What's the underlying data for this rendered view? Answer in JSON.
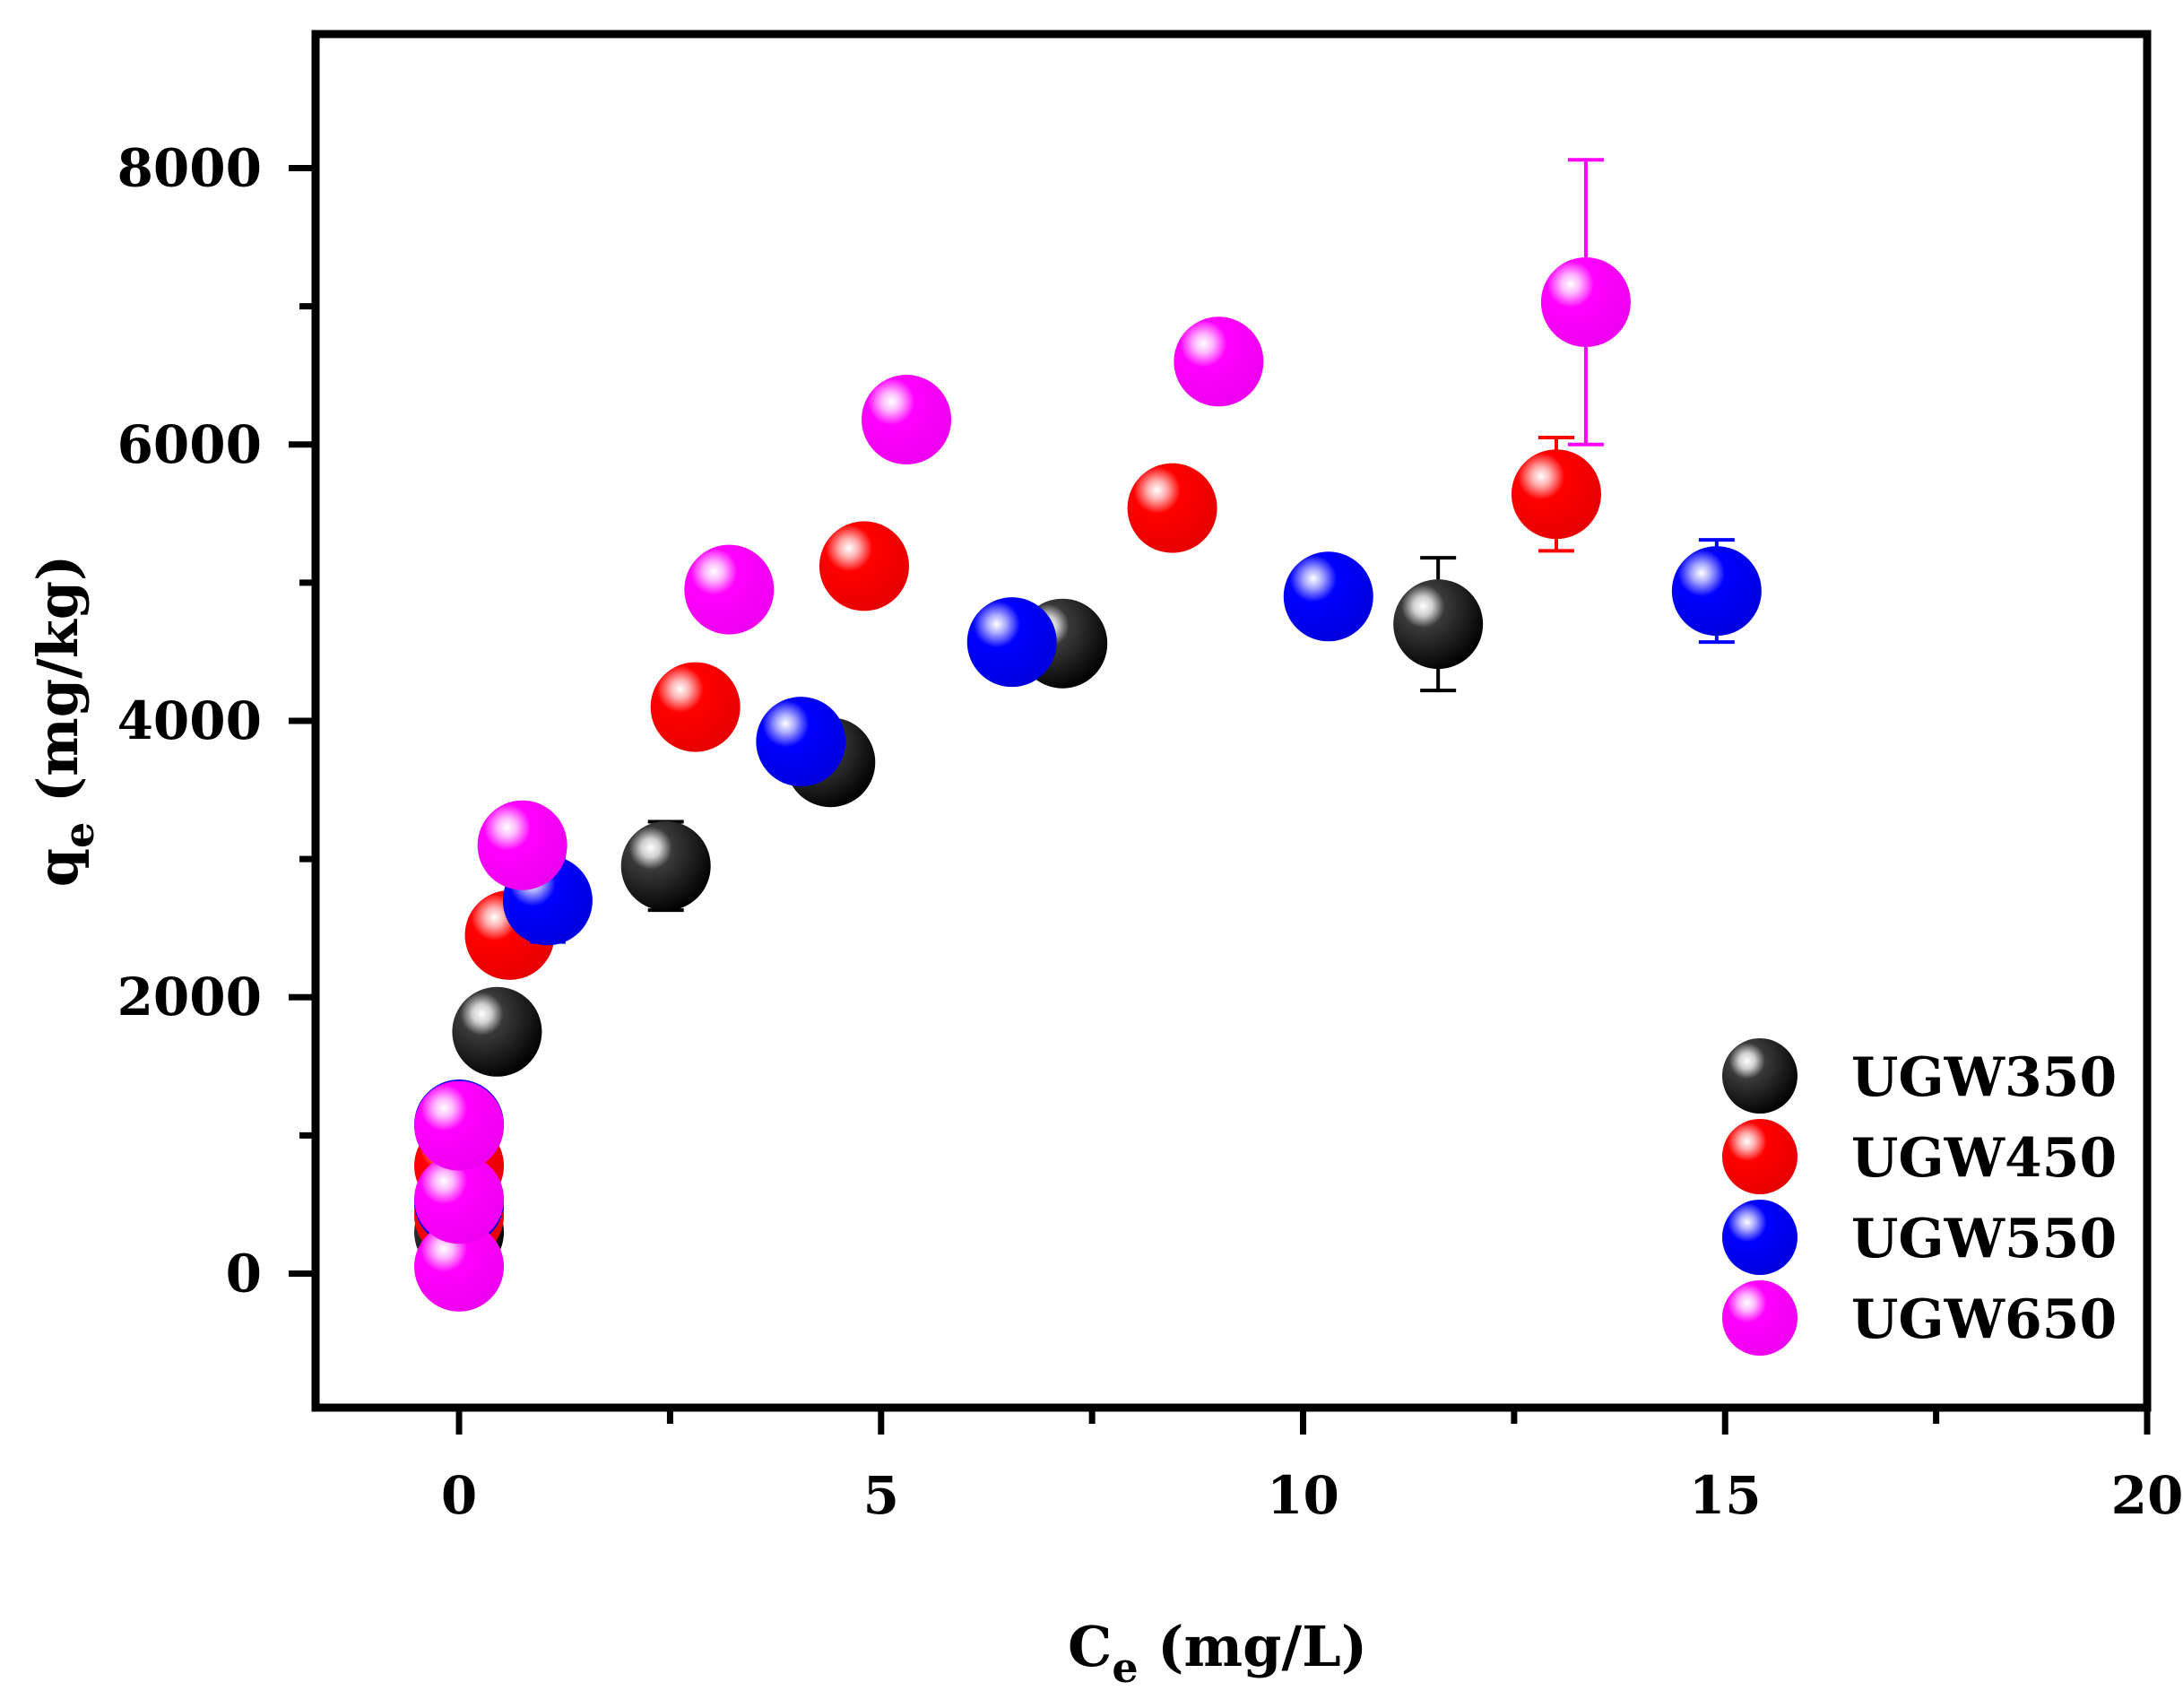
{
  "chart_data": {
    "type": "scatter",
    "title": "",
    "xlabel": {
      "main": "C",
      "sub": "e",
      "unit": " (mg/L)"
    },
    "ylabel": {
      "main": "q",
      "sub": "e",
      "unit": " (mg/kg)"
    },
    "xlim": [
      -1.7,
      20
    ],
    "ylim": [
      -970,
      8970
    ],
    "x_ticks": [
      0,
      5,
      10,
      15,
      20
    ],
    "x_tick_labels": [
      "0",
      "5",
      "10",
      "15",
      "20"
    ],
    "y_ticks": [
      0,
      2000,
      4000,
      6000,
      8000
    ],
    "y_tick_labels": [
      "0",
      "2000",
      "4000",
      "6000",
      "8000"
    ],
    "grid": false,
    "legend_position": "bottom-right",
    "series": [
      {
        "name": "UGW350",
        "color": "#000000",
        "points": [
          {
            "x": 0.0,
            "y": 300,
            "err": 80
          },
          {
            "x": 0.0,
            "y": 480,
            "err": 80
          },
          {
            "x": 0.45,
            "y": 1750,
            "err": 80
          },
          {
            "x": 2.45,
            "y": 2950,
            "err": 320
          },
          {
            "x": 4.4,
            "y": 3700,
            "err": 150
          },
          {
            "x": 7.15,
            "y": 4560,
            "err": 80
          },
          {
            "x": 11.6,
            "y": 4700,
            "err": 480
          }
        ]
      },
      {
        "name": "UGW450",
        "color": "#ff0000",
        "points": [
          {
            "x": 0.0,
            "y": 420,
            "err": 80
          },
          {
            "x": 0.0,
            "y": 780,
            "err": 80
          },
          {
            "x": 0.6,
            "y": 2450,
            "err": 80
          },
          {
            "x": 2.8,
            "y": 4100,
            "err": 80
          },
          {
            "x": 4.8,
            "y": 5120,
            "err": 80
          },
          {
            "x": 8.45,
            "y": 5540,
            "err": 80
          },
          {
            "x": 13.0,
            "y": 5640,
            "err": 410
          }
        ]
      },
      {
        "name": "UGW550",
        "color": "#0000ff",
        "points": [
          {
            "x": 0.0,
            "y": 520,
            "err": 80
          },
          {
            "x": 0.0,
            "y": 1080,
            "err": 280
          },
          {
            "x": 1.05,
            "y": 2700,
            "err": 300
          },
          {
            "x": 4.05,
            "y": 3850,
            "err": 80
          },
          {
            "x": 6.55,
            "y": 4570,
            "err": 80
          },
          {
            "x": 10.3,
            "y": 4900,
            "err": 80
          },
          {
            "x": 14.9,
            "y": 4940,
            "err": 370
          }
        ]
      },
      {
        "name": "UGW650",
        "color": "#ff00ff",
        "points": [
          {
            "x": 0.0,
            "y": 50,
            "err": 80
          },
          {
            "x": 0.0,
            "y": 540,
            "err": 80
          },
          {
            "x": 0.0,
            "y": 1070,
            "err": 80
          },
          {
            "x": 0.75,
            "y": 3100,
            "err": 80
          },
          {
            "x": 3.2,
            "y": 4950,
            "err": 80
          },
          {
            "x": 5.3,
            "y": 6180,
            "err": 80
          },
          {
            "x": 9.0,
            "y": 6600,
            "err": 80
          },
          {
            "x": 13.35,
            "y": 7030,
            "err": 1030
          }
        ]
      }
    ]
  }
}
